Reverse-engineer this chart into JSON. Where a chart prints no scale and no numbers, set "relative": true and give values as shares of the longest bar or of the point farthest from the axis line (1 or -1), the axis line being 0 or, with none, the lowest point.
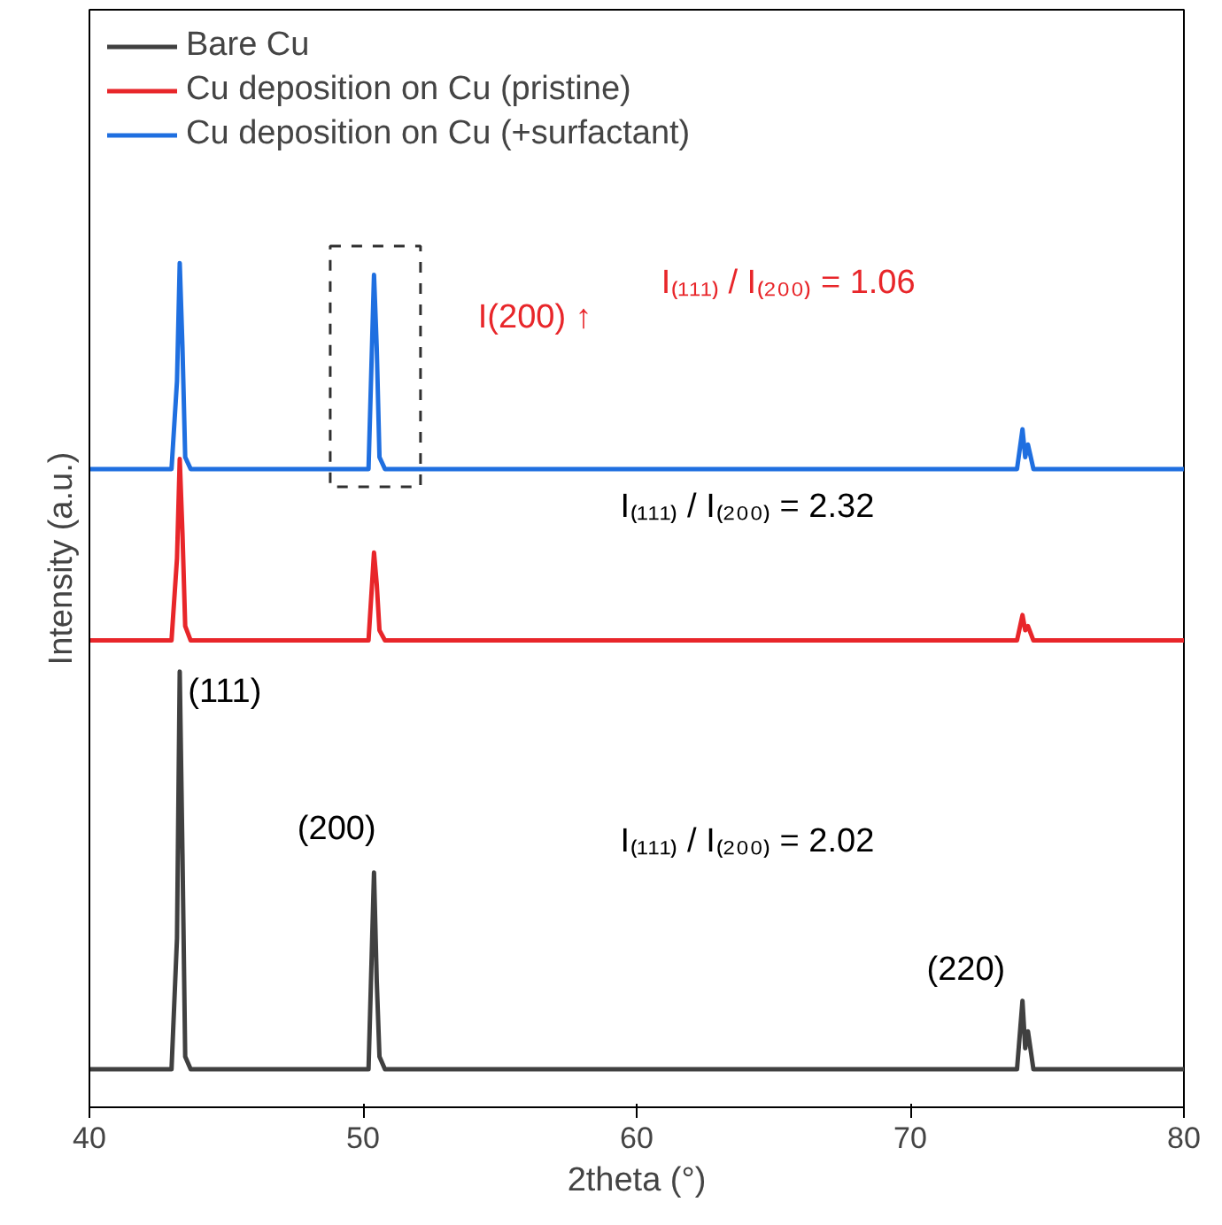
{
  "chart_data": {
    "type": "line",
    "relative": true,
    "xlabel": "2theta (°)",
    "ylabel": "Intensity (a.u.)",
    "xlim": [
      40,
      80
    ],
    "xticks": [
      40,
      50,
      60,
      70,
      80
    ],
    "grid": false,
    "legend": "top left",
    "marker": "none",
    "line_style": "solid",
    "series": [
      {
        "name": "Bare Cu",
        "color": "#404040",
        "x": [
          40,
          43.0,
          43.2,
          43.3,
          43.4,
          43.5,
          43.7,
          50.2,
          50.4,
          50.5,
          50.6,
          50.8,
          73.9,
          74.1,
          74.2,
          74.3,
          74.5,
          80
        ],
        "values": [
          0.045,
          0.045,
          0.2,
          0.516,
          0.3,
          0.06,
          0.045,
          0.045,
          0.278,
          0.15,
          0.06,
          0.045,
          0.045,
          0.126,
          0.07,
          0.09,
          0.045,
          0.045
        ]
      },
      {
        "name": "Cu deposition on Cu (pristine)",
        "color": "#e8262a",
        "x": [
          40,
          43.0,
          43.2,
          43.3,
          43.4,
          43.5,
          43.7,
          50.2,
          50.4,
          50.5,
          50.6,
          50.8,
          73.9,
          74.1,
          74.2,
          74.3,
          74.5,
          80
        ],
        "values": [
          0.553,
          0.553,
          0.65,
          0.768,
          0.68,
          0.57,
          0.553,
          0.553,
          0.657,
          0.62,
          0.565,
          0.553,
          0.553,
          0.583,
          0.565,
          0.57,
          0.553,
          0.553
        ]
      },
      {
        "name": "Cu deposition on Cu (+surfactant)",
        "color": "#1f6fe0",
        "x": [
          40,
          43.0,
          43.2,
          43.3,
          43.4,
          43.5,
          43.7,
          50.2,
          50.4,
          50.5,
          50.6,
          50.8,
          73.9,
          74.1,
          74.2,
          74.3,
          74.5,
          80
        ],
        "values": [
          0.756,
          0.756,
          0.86,
          1.0,
          0.9,
          0.77,
          0.756,
          0.756,
          0.986,
          0.9,
          0.77,
          0.756,
          0.756,
          0.803,
          0.77,
          0.785,
          0.756,
          0.756
        ]
      }
    ],
    "annotations": [
      {
        "text": "(111)",
        "x": 43.6,
        "y": 0.492
      },
      "(200)",
      "(220)",
      "I₍₁₁₁₎ / I₍₂₀₀₎ = 2.02",
      "I₍₁₁₁₎ / I₍₂₀₀₎ = 2.32",
      "I₍₁₁₁₎ / I₍₂₀₀₎ = 1.06",
      "I(200) ↑"
    ]
  }
}
